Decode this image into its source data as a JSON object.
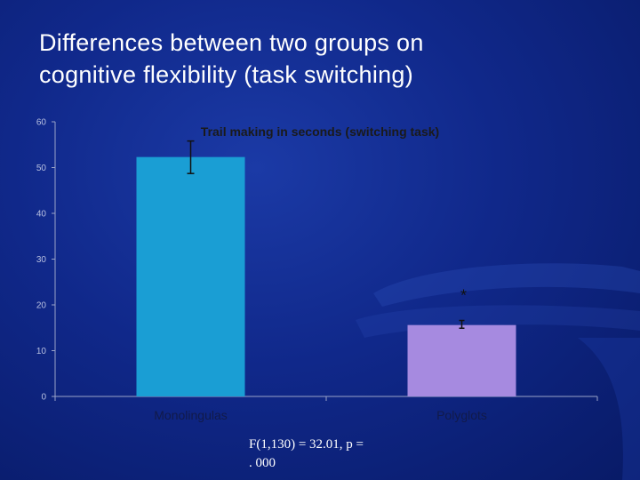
{
  "slide": {
    "title_lines": [
      "Differences between two groups on",
      "cognitive flexibility (task switching)"
    ],
    "stats_lines": [
      "F(1,130) = 32.01,  p =",
      ". 000"
    ]
  },
  "colors": {
    "background": "#10288a",
    "title_text": "#ffffff",
    "monolingual_bar": "#1a9ed4",
    "polyglot_bar": "#a68ae0",
    "axis": "#9aa3c8",
    "chart_title": "#1a1a1a"
  },
  "chart_data": {
    "type": "bar",
    "title": "Trail making in seconds (switching task)",
    "categories": [
      "Monolingulas",
      "Polyglots"
    ],
    "values": [
      52.3,
      15.6
    ],
    "error_bars": [
      {
        "low": 48.7,
        "high": 55.8
      },
      {
        "low": 14.9,
        "high": 16.6
      }
    ],
    "annotations": [
      {
        "category": "Polyglots",
        "text": "*"
      }
    ],
    "ylim": [
      0,
      60
    ],
    "yticks": [
      0,
      10,
      20,
      30,
      40,
      50,
      60
    ],
    "xlabel": "",
    "ylabel": "",
    "grid": false,
    "legend": "none"
  }
}
